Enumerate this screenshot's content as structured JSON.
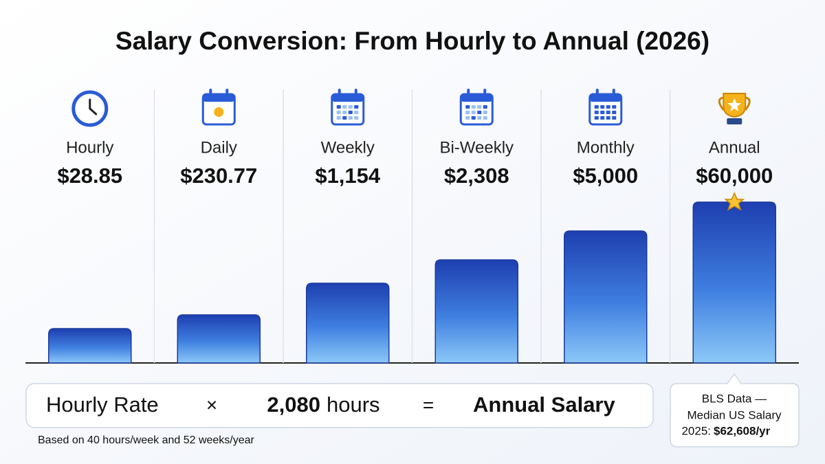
{
  "title": "Salary Conversion: From Hourly to Annual (2026)",
  "columns": [
    {
      "label": "Hourly",
      "value": "$28.85"
    },
    {
      "label": "Daily",
      "value": "$230.77"
    },
    {
      "label": "Weekly",
      "value": "$1,154"
    },
    {
      "label": "Bi-Weekly",
      "value": "$2,308"
    },
    {
      "label": "Monthly",
      "value": "$5,000"
    },
    {
      "label": "Annual",
      "value": "$60,000"
    }
  ],
  "formula": {
    "left": "Hourly Rate",
    "times": "×",
    "hours_number": "2,080",
    "hours_unit": "hours",
    "equals": "=",
    "right": "Annual Salary"
  },
  "footnote": "Based on 40 hours/week and 52 weeks/year",
  "callout": {
    "line1": "BLS Data —",
    "line2": "Median US Salary",
    "line3_prefix": "2025:",
    "line3_value": "$62,608/yr"
  }
}
